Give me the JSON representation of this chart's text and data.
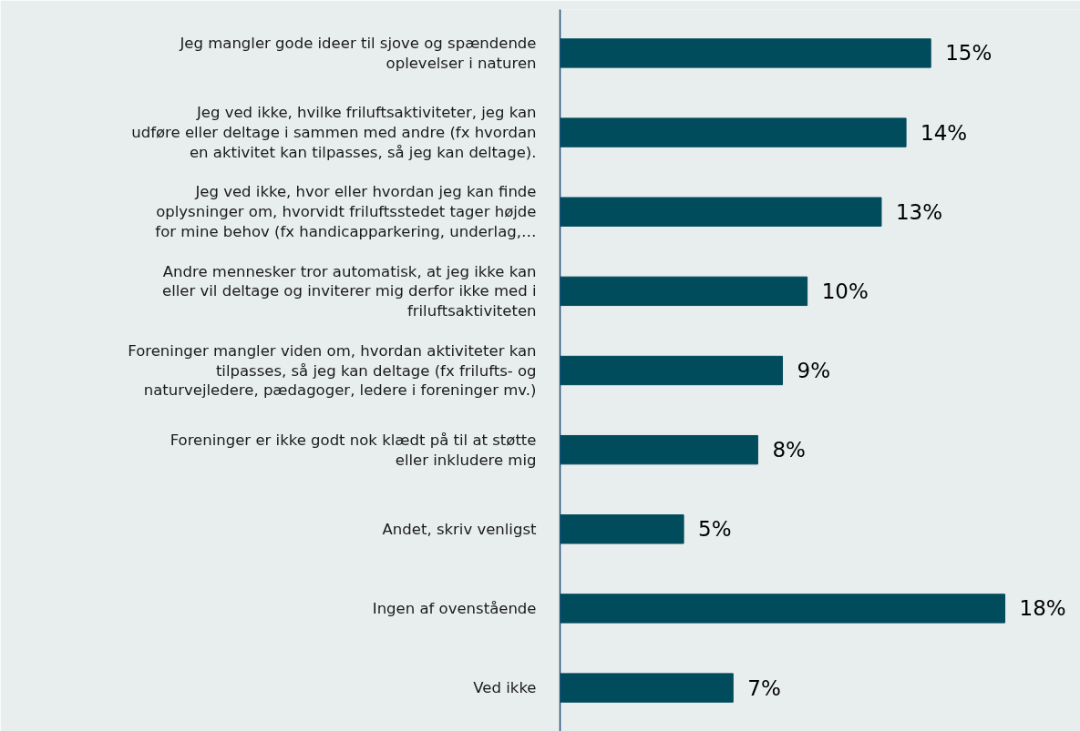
{
  "chart_data": {
    "type": "bar",
    "orientation": "horizontal",
    "categories": [
      "Jeg mangler gode ideer til sjove og spændende oplevelser i naturen",
      "Jeg ved ikke, hvilke friluftsaktiviteter, jeg kan udføre eller deltage i sammen med andre (fx hvordan en aktivitet kan tilpasses, så jeg kan deltage).",
      "Jeg ved ikke, hvor eller hvordan jeg kan finde oplysninger om, hvorvidt friluftsstedet tager højde for mine behov (fx handicapparkering, underlag,…",
      "Andre mennesker tror automatisk, at jeg ikke kan eller vil deltage og inviterer mig derfor ikke med i friluftsaktiviteten",
      "Foreninger mangler viden om, hvordan aktiviteter kan tilpasses, så jeg kan deltage (fx frilufts- og naturvejledere, pædagoger, ledere i foreninger mv.)",
      "Foreninger er ikke godt nok klædt på til at støtte eller inkludere mig",
      "Andet, skriv venligst",
      "Ingen af ovenstående",
      "Ved ikke"
    ],
    "values": [
      15,
      14,
      13,
      10,
      9,
      8,
      5,
      18,
      7
    ],
    "value_labels": [
      "15%",
      "14%",
      "13%",
      "10%",
      "9%",
      "8%",
      "5%",
      "18%",
      "7%"
    ],
    "color": "#004b5c",
    "grid": false,
    "tick_labels": "y"
  }
}
